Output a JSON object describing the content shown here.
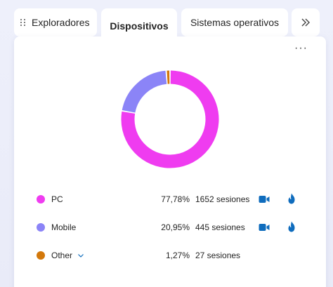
{
  "tabs": [
    {
      "label": "Exploradores"
    },
    {
      "label": "Dispositivos"
    },
    {
      "label": "Sistemas operativos"
    }
  ],
  "more_tabs_icon": "double-chevron-right-icon",
  "card_menu_icon": "more-horizontal-icon",
  "colors": {
    "pc": "#ef3cf0",
    "mobile": "#8b84f7",
    "other": "#d3780b",
    "accent": "#0f6cbd"
  },
  "chart_data": {
    "type": "pie",
    "categories": [
      "PC",
      "Mobile",
      "Other"
    ],
    "values": [
      77.78,
      20.95,
      1.27
    ],
    "sessions": [
      1652,
      445,
      27
    ]
  },
  "rows": [
    {
      "label": "PC",
      "pct": "77,78%",
      "sessions": "1652 sesiones"
    },
    {
      "label": "Mobile",
      "pct": "20,95%",
      "sessions": "445 sesiones"
    },
    {
      "label": "Other",
      "pct": "1,27%",
      "sessions": "27 sesiones"
    }
  ]
}
